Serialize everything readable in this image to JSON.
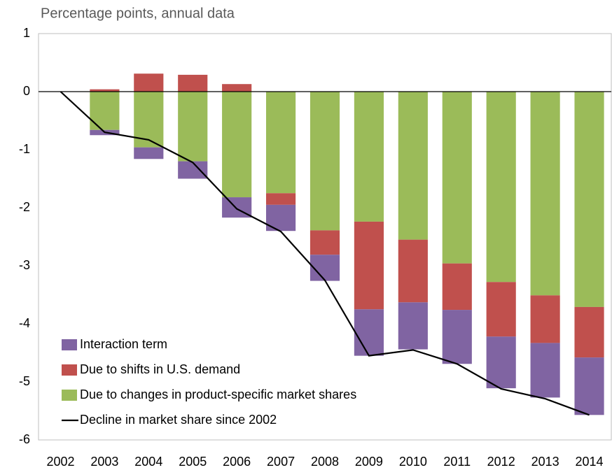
{
  "chart_data": {
    "type": "stacked-bar-line",
    "subtitle": "Percentage points, annual data",
    "categories": [
      "2002",
      "2003",
      "2004",
      "2005",
      "2006",
      "2007",
      "2008",
      "2009",
      "2010",
      "2011",
      "2012",
      "2013",
      "2014"
    ],
    "series": [
      {
        "name": "Due to changes in product-specific market shares",
        "type": "bar",
        "color": "#9bbb59",
        "values": [
          0,
          -0.66,
          -0.96,
          -1.2,
          -1.82,
          -1.75,
          -2.39,
          -2.24,
          -2.55,
          -2.96,
          -3.28,
          -3.51,
          -3.71
        ]
      },
      {
        "name": "Due to shifts in U.S. demand",
        "type": "bar",
        "color": "#c0504d",
        "values": [
          0,
          0.04,
          0.31,
          0.29,
          0.13,
          -0.2,
          -0.42,
          -1.51,
          -1.08,
          -0.8,
          -0.94,
          -0.82,
          -0.87
        ]
      },
      {
        "name": "Interaction term",
        "type": "bar",
        "color": "#8064a2",
        "values": [
          0,
          -0.09,
          -0.2,
          -0.3,
          -0.35,
          -0.45,
          -0.45,
          -0.8,
          -0.81,
          -0.93,
          -0.89,
          -0.94,
          -0.99
        ]
      },
      {
        "name": "Decline in market share since 2002",
        "type": "line",
        "color": "#000000",
        "values": [
          0,
          -0.7,
          -0.83,
          -1.22,
          -2.02,
          -2.41,
          -3.25,
          -4.55,
          -4.45,
          -4.69,
          -5.12,
          -5.29,
          -5.57
        ]
      }
    ],
    "legend_order": [
      2,
      1,
      0,
      3
    ],
    "legend": "bottom-left",
    "ylim": [
      -6,
      1
    ],
    "yticks": [
      -6,
      -5,
      -4,
      -3,
      -2,
      -1,
      0,
      1
    ],
    "grid": false
  }
}
